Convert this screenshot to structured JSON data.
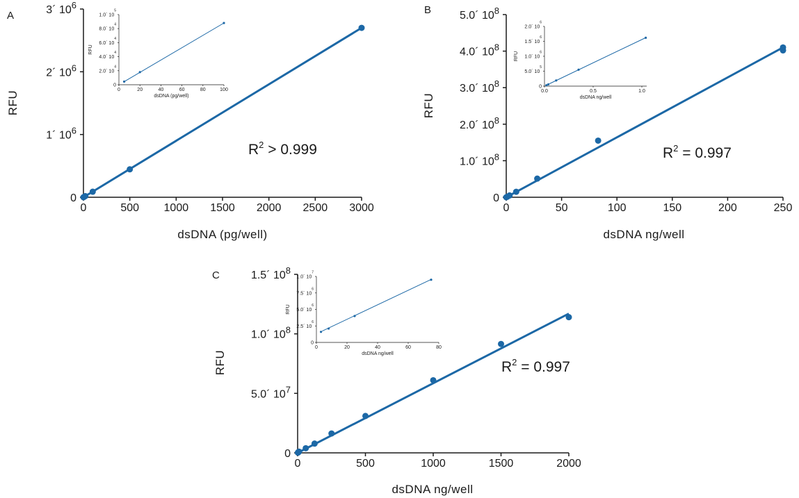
{
  "chart_data": [
    {
      "panel": "A",
      "type": "scatter",
      "xlabel": "dsDNA (pg/well)",
      "ylabel": "RFU",
      "xlim": [
        0,
        3000
      ],
      "ylim": [
        0,
        3000000
      ],
      "x_ticks": [
        0,
        500,
        1000,
        1500,
        2000,
        2500,
        3000
      ],
      "x_tick_labels": [
        "0",
        "500",
        "1000",
        "1500",
        "2000",
        "2500",
        "3000"
      ],
      "y_ticks": [
        0,
        1000000,
        2000000,
        3000000
      ],
      "y_tick_labels": [
        {
          "base": "0",
          "exp": ""
        },
        {
          "base": "1´ 10",
          "exp": "6"
        },
        {
          "base": "2´ 10",
          "exp": "6"
        },
        {
          "base": "3´ 10",
          "exp": "6"
        }
      ],
      "annotation": {
        "prefix": "R",
        "exp": "2",
        "suffix": " > 0.999"
      },
      "series": [
        {
          "x": [
            0,
            5,
            20,
            100,
            500,
            3000
          ],
          "y": [
            0,
            4500,
            18000,
            88000,
            445000,
            2700000
          ]
        }
      ],
      "fit": {
        "slope": 900,
        "intercept": 0
      },
      "inset": {
        "xlabel": "dsDNA (pg/well)",
        "ylabel": "RFU",
        "xlim": [
          0,
          100
        ],
        "ylim": [
          0,
          100000
        ],
        "x_ticks": [
          0,
          20,
          40,
          60,
          80,
          100
        ],
        "x_tick_labels": [
          "0",
          "20",
          "40",
          "60",
          "80",
          "100"
        ],
        "y_ticks": [
          0,
          20000,
          40000,
          60000,
          80000,
          100000
        ],
        "y_tick_labels": [
          {
            "base": "0",
            "exp": ""
          },
          {
            "base": "2.0´ 10",
            "exp": "4"
          },
          {
            "base": "4.0´ 10",
            "exp": "4"
          },
          {
            "base": "6.0´ 10",
            "exp": "4"
          },
          {
            "base": "8.0´ 10",
            "exp": "4"
          },
          {
            "base": "1.0´ 10",
            "exp": "5"
          }
        ],
        "series": [
          {
            "x": [
              5,
              20,
              100
            ],
            "y": [
              4500,
              18000,
              88000
            ]
          }
        ],
        "fit": {
          "slope": 880,
          "intercept": 0
        }
      }
    },
    {
      "panel": "B",
      "type": "scatter",
      "xlabel": "dsDNA ng/well",
      "ylabel": "RFU",
      "xlim": [
        0,
        250
      ],
      "ylim": [
        0,
        500000000
      ],
      "x_ticks": [
        0,
        50,
        100,
        150,
        200,
        250
      ],
      "x_tick_labels": [
        "0",
        "50",
        "100",
        "150",
        "200",
        "250"
      ],
      "y_ticks": [
        0,
        100000000,
        200000000,
        300000000,
        400000000,
        500000000
      ],
      "y_tick_labels": [
        {
          "base": "0",
          "exp": ""
        },
        {
          "base": "1.0´ 10",
          "exp": "8"
        },
        {
          "base": "2.0´ 10",
          "exp": "8"
        },
        {
          "base": "3.0´ 10",
          "exp": "8"
        },
        {
          "base": "4.0´ 10",
          "exp": "8"
        },
        {
          "base": "5.0´ 10",
          "exp": "8"
        }
      ],
      "annotation": {
        "prefix": "R",
        "exp": "2",
        "suffix": " = 0.997"
      },
      "series": [
        {
          "x": [
            0,
            1,
            3,
            9,
            28,
            83,
            250,
            250
          ],
          "y": [
            0,
            1600000,
            4900000,
            15000000,
            51000000,
            155000000,
            410000000,
            402000000
          ]
        }
      ],
      "fit": {
        "slope": 1640000,
        "intercept": 0
      },
      "inset": {
        "xlabel": "dsDNA ng/well",
        "ylabel": "RFU",
        "xlim": [
          0,
          1.05
        ],
        "ylim": [
          0,
          2000000
        ],
        "x_ticks": [
          0,
          0.5,
          1.0
        ],
        "x_tick_labels": [
          "0.0",
          "0.5",
          "1.0"
        ],
        "y_ticks": [
          0,
          500000,
          1000000,
          1500000,
          2000000
        ],
        "y_tick_labels": [
          {
            "base": "0",
            "exp": ""
          },
          {
            "base": "5.0´ 10",
            "exp": "5"
          },
          {
            "base": "1.0´ 10",
            "exp": "6"
          },
          {
            "base": "1.5´ 10",
            "exp": "6"
          },
          {
            "base": "2.0´ 10",
            "exp": "6"
          }
        ],
        "series": [
          {
            "x": [
              0.02,
              0.04,
              0.12,
              0.35,
              1.04
            ],
            "y": [
              30000,
              60000,
              190000,
              550000,
              1620000
            ]
          }
        ],
        "fit": {
          "slope": 1560000,
          "intercept": 0
        }
      }
    },
    {
      "panel": "C",
      "type": "scatter",
      "xlabel": "dsDNA ng/well",
      "ylabel": "RFU",
      "xlim": [
        0,
        2000
      ],
      "ylim": [
        0,
        150000000
      ],
      "x_ticks": [
        0,
        500,
        1000,
        1500,
        2000
      ],
      "x_tick_labels": [
        "0",
        "500",
        "1000",
        "1500",
        "2000"
      ],
      "y_ticks": [
        0,
        50000000,
        100000000,
        150000000
      ],
      "y_tick_labels": [
        {
          "base": "0",
          "exp": ""
        },
        {
          "base": "5.0´ 10",
          "exp": "7"
        },
        {
          "base": "1.0´ 10",
          "exp": "8"
        },
        {
          "base": "1.5´ 10",
          "exp": "8"
        }
      ],
      "annotation": {
        "prefix": "R",
        "exp": "2",
        "suffix": " = 0.997"
      },
      "series": [
        {
          "x": [
            2,
            5,
            10,
            60,
            125,
            250,
            500,
            1000,
            1500,
            2000
          ],
          "y": [
            200000,
            500000,
            1000000,
            3900000,
            7800000,
            16300000,
            31000000,
            61000000,
            91500000,
            114000000
          ]
        }
      ],
      "fit": {
        "slope": 58500,
        "intercept": 0
      },
      "inset": {
        "xlabel": "dsDNA ng/well",
        "ylabel": "RFU",
        "xlim": [
          0,
          80
        ],
        "ylim": [
          0,
          10000000
        ],
        "x_ticks": [
          0,
          20,
          40,
          60,
          80
        ],
        "x_tick_labels": [
          "0",
          "20",
          "40",
          "60",
          "80"
        ],
        "y_ticks": [
          0,
          2500000,
          5000000,
          7500000,
          10000000
        ],
        "y_tick_labels": [
          {
            "base": "0",
            "exp": ""
          },
          {
            "base": "2.5´ 10",
            "exp": "6"
          },
          {
            "base": "5.0´ 10",
            "exp": "6"
          },
          {
            "base": "7.5´ 10",
            "exp": "6"
          },
          {
            "base": "1.0´ 10",
            "exp": "7"
          }
        ],
        "series": [
          {
            "x": [
              3,
              8,
              25,
              75
            ],
            "y": [
              1600000,
              2100000,
              4000000,
              9500000
            ]
          }
        ],
        "fit": {
          "slope": 110000,
          "intercept": 1300000
        }
      }
    }
  ]
}
